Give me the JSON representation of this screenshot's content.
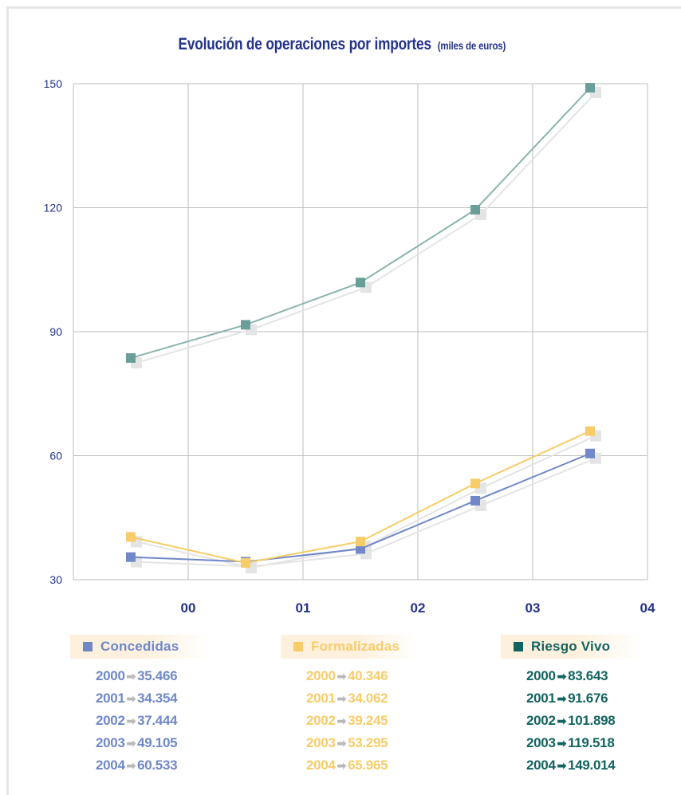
{
  "chart_data": {
    "type": "line",
    "title": "Evolución de operaciones por importes",
    "subtitle": "(miles de euros)",
    "x_tick_labels": [
      "00",
      "01",
      "02",
      "03",
      "04"
    ],
    "y_ticks": [
      30,
      60,
      90,
      120,
      150
    ],
    "ylim": [
      30,
      150
    ],
    "x": [
      "2000",
      "2001",
      "2002",
      "2003",
      "2004"
    ],
    "grid": true,
    "legend_position": "bottom",
    "series": [
      {
        "name": "Concedidas",
        "color": "#7088c8",
        "values": [
          35.466,
          34.354,
          37.444,
          49.105,
          60.533
        ],
        "labels": [
          "35.466",
          "34.354",
          "37.444",
          "49.105",
          "60.533"
        ]
      },
      {
        "name": "Formalizadas",
        "color": "#f8cc68",
        "values": [
          40.346,
          34.062,
          39.245,
          53.295,
          65.965
        ],
        "labels": [
          "40.346",
          "34.062",
          "39.245",
          "53.295",
          "65.965"
        ]
      },
      {
        "name": "Riesgo Vivo",
        "color": "#126460",
        "line_color": "#8ab4ae",
        "marker_color": "#6a9e98",
        "values": [
          83.643,
          91.676,
          101.898,
          119.518,
          149.014
        ],
        "labels": [
          "83.643",
          "91.676",
          "101.898",
          "119.518",
          "149.014"
        ]
      }
    ]
  },
  "colors": {
    "title": "#24328a",
    "grid": "#bcbcbc",
    "axis_text": "#24328a",
    "shadow": "#e4e4e4",
    "legend_bg": "#fdf1de"
  },
  "arrow_glyph": "➡"
}
